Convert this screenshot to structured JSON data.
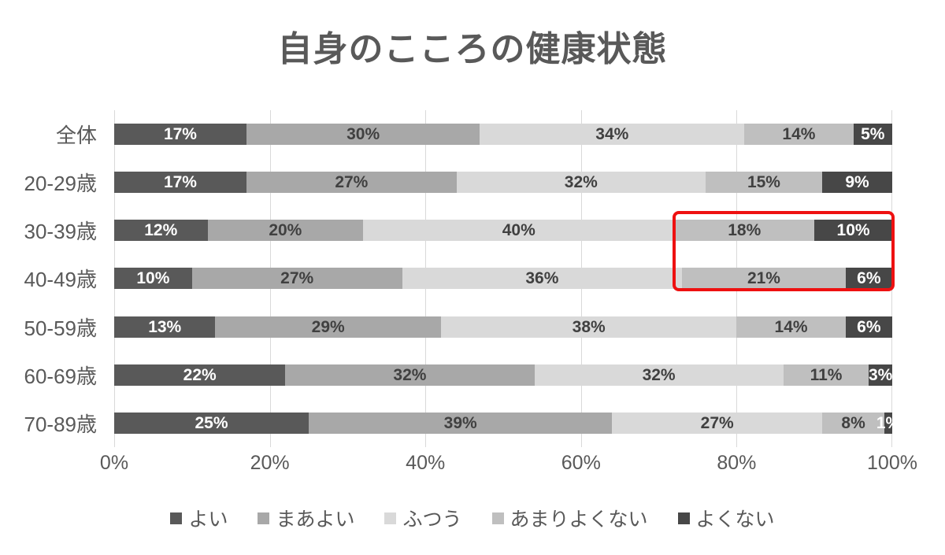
{
  "title": "自身のこころの健康状態",
  "chart_data": {
    "type": "bar",
    "orientation": "horizontal-stacked",
    "title": "自身のこころの健康状態",
    "categories": [
      "全体",
      "20-29歳",
      "30-39歳",
      "40-49歳",
      "50-59歳",
      "60-69歳",
      "70-89歳"
    ],
    "series": [
      {
        "name": "よい",
        "color": "#595959",
        "label_color": "#ffffff",
        "values": [
          17,
          17,
          12,
          10,
          13,
          22,
          25
        ]
      },
      {
        "name": "まあよい",
        "color": "#a8a8a8",
        "label_color": "#404040",
        "values": [
          30,
          27,
          20,
          27,
          29,
          32,
          39
        ]
      },
      {
        "name": "ふつう",
        "color": "#d9d9d9",
        "label_color": "#404040",
        "values": [
          34,
          32,
          40,
          36,
          38,
          32,
          27
        ]
      },
      {
        "name": "あまりよくない",
        "color": "#bfbfbf",
        "label_color": "#404040",
        "values": [
          14,
          15,
          18,
          21,
          14,
          11,
          8
        ]
      },
      {
        "name": "よくない",
        "color": "#474747",
        "label_color": "#ffffff",
        "values": [
          5,
          9,
          10,
          6,
          6,
          3,
          1
        ]
      }
    ],
    "data_label_suffix": "%",
    "x_ticks": [
      "0%",
      "20%",
      "40%",
      "60%",
      "80%",
      "100%"
    ],
    "xlim": [
      0,
      100
    ],
    "grid": "vertical",
    "gridline_color": "#d9d9d9",
    "legend_position": "bottom",
    "annotation": {
      "type": "highlight-box",
      "color": "#ee1111",
      "highlighted_rows": [
        "30-39歳",
        "40-49歳"
      ],
      "highlighted_series": [
        "あまりよくない",
        "よくない"
      ],
      "x_range_percent": [
        72,
        100
      ]
    }
  }
}
